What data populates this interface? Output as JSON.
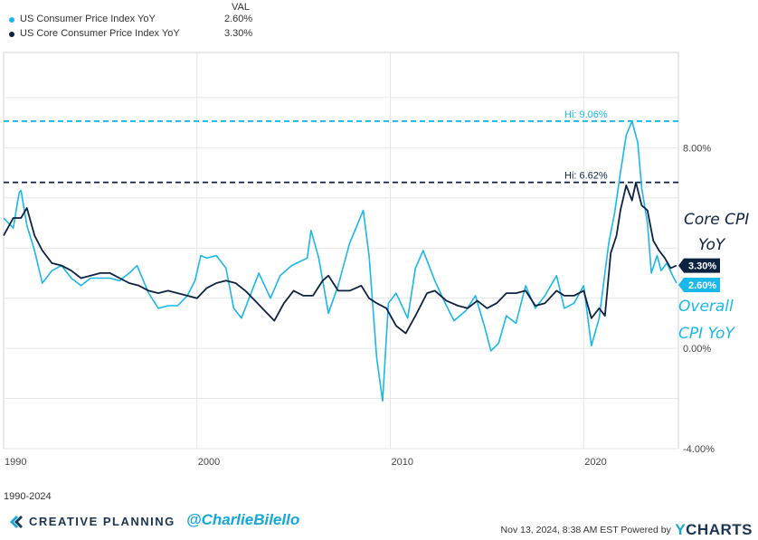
{
  "legend": {
    "header": "VAL",
    "items": [
      {
        "name": "US Consumer Price Index YoY",
        "value": "2.60%",
        "color": "#1ab7ea"
      },
      {
        "name": "US Core Consumer Price Index YoY",
        "value": "3.30%",
        "color": "#0d2240"
      }
    ]
  },
  "chart_data": {
    "type": "line",
    "title": "",
    "xlabel": "",
    "ylabel": "",
    "xlim": [
      1990.0,
      2024.9
    ],
    "ylim": [
      -4.0,
      11.8
    ],
    "x_ticks": [
      "1990",
      "2000",
      "2010",
      "2020"
    ],
    "y_ticks": [
      "8.00%",
      "0.00%",
      "-4.00%"
    ],
    "grid": true,
    "legend_position": "top-left",
    "series": [
      {
        "name": "US Consumer Price Index YoY",
        "color": "#1ab7ea",
        "points": [
          [
            1990.0,
            5.2
          ],
          [
            1990.5,
            4.8
          ],
          [
            1990.8,
            6.2
          ],
          [
            1990.9,
            6.3
          ],
          [
            1991.2,
            4.9
          ],
          [
            1991.6,
            3.9
          ],
          [
            1992.0,
            2.6
          ],
          [
            1992.5,
            3.1
          ],
          [
            1993.0,
            3.3
          ],
          [
            1993.5,
            2.8
          ],
          [
            1994.0,
            2.5
          ],
          [
            1994.5,
            2.8
          ],
          [
            1995.0,
            2.8
          ],
          [
            1995.5,
            2.8
          ],
          [
            1996.0,
            2.7
          ],
          [
            1996.5,
            3.0
          ],
          [
            1996.9,
            3.3
          ],
          [
            1997.5,
            2.2
          ],
          [
            1998.0,
            1.6
          ],
          [
            1998.5,
            1.7
          ],
          [
            1999.0,
            1.7
          ],
          [
            1999.5,
            2.1
          ],
          [
            1999.9,
            2.7
          ],
          [
            2000.2,
            3.7
          ],
          [
            2000.5,
            3.6
          ],
          [
            2001.0,
            3.7
          ],
          [
            2001.5,
            3.2
          ],
          [
            2001.9,
            1.6
          ],
          [
            2002.3,
            1.2
          ],
          [
            2002.9,
            2.4
          ],
          [
            2003.2,
            3.0
          ],
          [
            2003.8,
            2.0
          ],
          [
            2004.3,
            2.9
          ],
          [
            2004.9,
            3.3
          ],
          [
            2005.7,
            3.6
          ],
          [
            2005.9,
            4.7
          ],
          [
            2006.3,
            3.6
          ],
          [
            2006.8,
            1.4
          ],
          [
            2007.3,
            2.5
          ],
          [
            2007.9,
            4.2
          ],
          [
            2008.6,
            5.5
          ],
          [
            2008.9,
            3.7
          ],
          [
            2009.3,
            -0.4
          ],
          [
            2009.6,
            -2.1
          ],
          [
            2009.9,
            1.8
          ],
          [
            2010.3,
            2.2
          ],
          [
            2010.9,
            1.2
          ],
          [
            2011.3,
            3.2
          ],
          [
            2011.7,
            3.9
          ],
          [
            2012.3,
            2.7
          ],
          [
            2012.9,
            1.7
          ],
          [
            2013.3,
            1.1
          ],
          [
            2013.9,
            1.5
          ],
          [
            2014.4,
            2.1
          ],
          [
            2014.9,
            0.8
          ],
          [
            2015.2,
            -0.1
          ],
          [
            2015.6,
            0.2
          ],
          [
            2016.0,
            1.3
          ],
          [
            2016.5,
            1.0
          ],
          [
            2017.0,
            2.5
          ],
          [
            2017.5,
            1.6
          ],
          [
            2018.0,
            2.1
          ],
          [
            2018.6,
            2.9
          ],
          [
            2019.0,
            1.6
          ],
          [
            2019.5,
            1.8
          ],
          [
            2020.0,
            2.5
          ],
          [
            2020.4,
            0.1
          ],
          [
            2020.8,
            1.2
          ],
          [
            2021.3,
            4.2
          ],
          [
            2021.6,
            5.4
          ],
          [
            2021.9,
            7.0
          ],
          [
            2022.2,
            8.5
          ],
          [
            2022.5,
            9.06
          ],
          [
            2022.8,
            8.2
          ],
          [
            2023.0,
            6.4
          ],
          [
            2023.3,
            5.0
          ],
          [
            2023.5,
            3.0
          ],
          [
            2023.8,
            3.7
          ],
          [
            2024.0,
            3.1
          ],
          [
            2024.3,
            3.4
          ],
          [
            2024.6,
            2.9
          ],
          [
            2024.8,
            2.6
          ]
        ]
      },
      {
        "name": "US Core Consumer Price Index YoY",
        "color": "#0d2240",
        "points": [
          [
            1990.0,
            4.5
          ],
          [
            1990.5,
            5.2
          ],
          [
            1990.9,
            5.2
          ],
          [
            1991.2,
            5.6
          ],
          [
            1991.6,
            4.5
          ],
          [
            1992.0,
            3.9
          ],
          [
            1992.5,
            3.4
          ],
          [
            1993.0,
            3.3
          ],
          [
            1993.5,
            3.1
          ],
          [
            1994.0,
            2.8
          ],
          [
            1994.5,
            2.9
          ],
          [
            1995.0,
            3.0
          ],
          [
            1995.5,
            3.0
          ],
          [
            1996.0,
            2.8
          ],
          [
            1996.5,
            2.6
          ],
          [
            1997.0,
            2.5
          ],
          [
            1997.5,
            2.3
          ],
          [
            1998.0,
            2.2
          ],
          [
            1998.5,
            2.3
          ],
          [
            1999.0,
            2.2
          ],
          [
            1999.5,
            2.1
          ],
          [
            2000.0,
            2.0
          ],
          [
            2000.5,
            2.4
          ],
          [
            2001.0,
            2.6
          ],
          [
            2001.5,
            2.7
          ],
          [
            2002.0,
            2.6
          ],
          [
            2002.5,
            2.3
          ],
          [
            2003.0,
            1.9
          ],
          [
            2003.5,
            1.5
          ],
          [
            2004.0,
            1.1
          ],
          [
            2004.5,
            1.8
          ],
          [
            2005.0,
            2.3
          ],
          [
            2005.5,
            2.1
          ],
          [
            2006.0,
            2.1
          ],
          [
            2006.5,
            2.7
          ],
          [
            2006.8,
            2.9
          ],
          [
            2007.3,
            2.3
          ],
          [
            2007.9,
            2.3
          ],
          [
            2008.5,
            2.5
          ],
          [
            2008.9,
            2.0
          ],
          [
            2009.3,
            1.8
          ],
          [
            2009.8,
            1.6
          ],
          [
            2010.3,
            0.9
          ],
          [
            2010.8,
            0.6
          ],
          [
            2011.3,
            1.3
          ],
          [
            2011.9,
            2.2
          ],
          [
            2012.3,
            2.3
          ],
          [
            2012.9,
            1.9
          ],
          [
            2013.5,
            1.7
          ],
          [
            2014.0,
            1.6
          ],
          [
            2014.5,
            1.9
          ],
          [
            2015.0,
            1.6
          ],
          [
            2015.5,
            1.8
          ],
          [
            2016.0,
            2.2
          ],
          [
            2016.5,
            2.2
          ],
          [
            2017.0,
            2.3
          ],
          [
            2017.5,
            1.7
          ],
          [
            2018.0,
            1.8
          ],
          [
            2018.6,
            2.3
          ],
          [
            2019.0,
            2.1
          ],
          [
            2019.5,
            2.1
          ],
          [
            2020.0,
            2.3
          ],
          [
            2020.4,
            1.2
          ],
          [
            2020.8,
            1.6
          ],
          [
            2021.1,
            1.3
          ],
          [
            2021.4,
            3.8
          ],
          [
            2021.7,
            4.5
          ],
          [
            2021.9,
            5.5
          ],
          [
            2022.2,
            6.5
          ],
          [
            2022.5,
            5.9
          ],
          [
            2022.7,
            6.62
          ],
          [
            2023.0,
            5.7
          ],
          [
            2023.3,
            5.5
          ],
          [
            2023.6,
            4.3
          ],
          [
            2023.9,
            3.9
          ],
          [
            2024.2,
            3.6
          ],
          [
            2024.5,
            3.2
          ],
          [
            2024.8,
            3.3
          ]
        ]
      }
    ],
    "reference_lines": [
      {
        "label": "Hi: 9.06%",
        "value": 9.06,
        "color": "#1ab7ea"
      },
      {
        "label": "Hi: 6.62%",
        "value": 6.62,
        "color": "#0d2240"
      }
    ],
    "end_labels": [
      {
        "text": "3.30%",
        "value": 3.3,
        "bg": "#0d2240"
      },
      {
        "text": "2.60%",
        "value": 2.6,
        "bg": "#1ab7ea"
      }
    ],
    "annotations": [
      {
        "lines": [
          "Core CPI",
          "YoY"
        ],
        "color": "#0d2240"
      },
      {
        "lines": [
          "Overall",
          "CPI YoY"
        ],
        "color": "#1ab7ea"
      }
    ]
  },
  "footer": {
    "range": "1990-2024",
    "brand": "CREATIVE PLANNING",
    "handle": "@CharlieBilello",
    "timestamp": "Nov 13, 2024, 8:38 AM EST Powered by",
    "ycharts_y": "Y",
    "ycharts_rest": "CHARTS"
  }
}
